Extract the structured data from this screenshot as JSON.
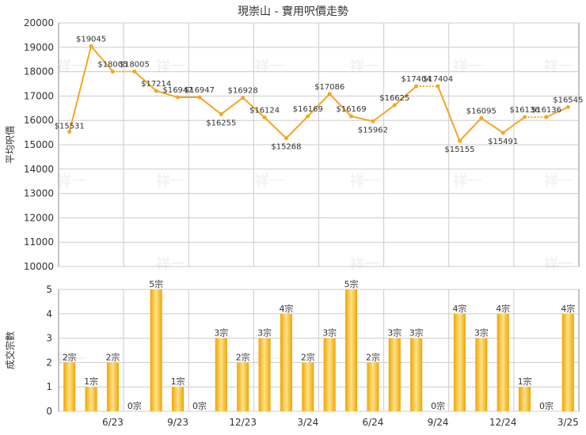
{
  "title": "現崇山 - 實用呎價走勢",
  "watermark": "祥一",
  "colors": {
    "line": "#f5a623",
    "bar_light": "#fde28a",
    "bar_dark": "#f0a500",
    "grid": "#cccccc",
    "axis": "#888888",
    "text": "#333333"
  },
  "chart_data": [
    {
      "type": "line",
      "ylabel": "平均呎價",
      "ylim": [
        10000,
        20000
      ],
      "yticks": [
        10000,
        11000,
        12000,
        13000,
        14000,
        15000,
        16000,
        17000,
        18000,
        19000,
        20000
      ],
      "grid": true,
      "values": [
        15531,
        19045,
        18005,
        18005,
        17214,
        16947,
        16947,
        16255,
        16928,
        16124,
        15268,
        16169,
        17086,
        16169,
        15962,
        16625,
        17404,
        17404,
        15155,
        16095,
        15491,
        16136,
        16136,
        16545
      ],
      "data_labels": [
        "$15531",
        "$19045",
        "$18005",
        "$18005",
        "$17214",
        "$16947",
        "$16947",
        "$16255",
        "$16928",
        "$16124",
        "$15268",
        "$16169",
        "$17086",
        "$16169",
        "$15962",
        "$16625",
        "$17404",
        "$17404",
        "$15155",
        "$16095",
        "$15491",
        "$16136",
        "$16136",
        "$16545"
      ],
      "dashed_segments": [
        2,
        16,
        21
      ]
    },
    {
      "type": "bar",
      "ylabel": "成交宗數",
      "ylim": [
        0,
        5
      ],
      "yticks": [
        0,
        1,
        2,
        3,
        4,
        5
      ],
      "grid": true,
      "values": [
        2,
        1,
        2,
        0,
        5,
        1,
        0,
        3,
        2,
        3,
        4,
        2,
        3,
        5,
        2,
        3,
        3,
        0,
        4,
        3,
        4,
        1,
        0,
        4
      ],
      "data_labels": [
        "2宗",
        "1宗",
        "2宗",
        "0宗",
        "5宗",
        "1宗",
        "0宗",
        "3宗",
        "2宗",
        "3宗",
        "4宗",
        "2宗",
        "3宗",
        "5宗",
        "2宗",
        "3宗",
        "3宗",
        "0宗",
        "4宗",
        "3宗",
        "4宗",
        "1宗",
        "0宗",
        "4宗"
      ],
      "x_tick_labels": [
        {
          "index": 2,
          "label": "6/23"
        },
        {
          "index": 5,
          "label": "9/23"
        },
        {
          "index": 8,
          "label": "12/23"
        },
        {
          "index": 11,
          "label": "3/24"
        },
        {
          "index": 14,
          "label": "6/24"
        },
        {
          "index": 17,
          "label": "9/24"
        },
        {
          "index": 20,
          "label": "12/24"
        },
        {
          "index": 23,
          "label": "3/25"
        }
      ]
    }
  ]
}
